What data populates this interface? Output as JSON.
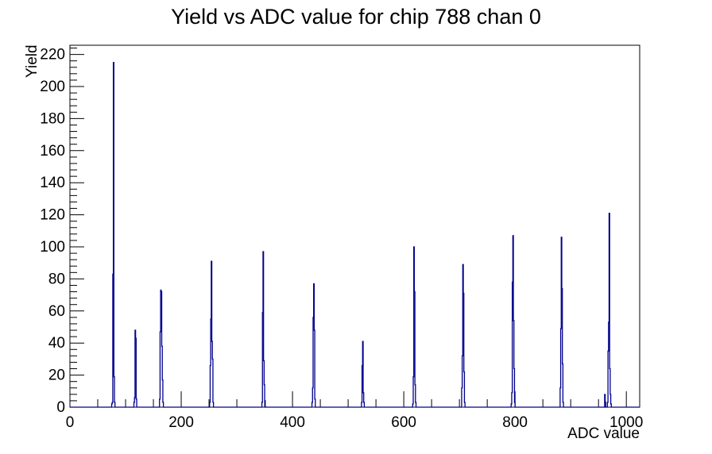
{
  "chart_data": {
    "type": "bar",
    "title": "Yield vs ADC value for chip 788 chan 0",
    "xlabel": "ADC value",
    "ylabel": "Yield",
    "xlim": [
      0,
      1024
    ],
    "ylim": [
      0,
      225.75
    ],
    "x_major_ticks": [
      0,
      200,
      400,
      600,
      800,
      1000
    ],
    "x_tick_labels": [
      "0",
      "200",
      "400",
      "600",
      "800",
      "1000"
    ],
    "x_minor_tick_step": 50,
    "y_major_ticks": [
      0,
      20,
      40,
      60,
      80,
      100,
      120,
      140,
      160,
      180,
      200,
      220
    ],
    "y_tick_labels": [
      "0",
      "20",
      "40",
      "60",
      "80",
      "100",
      "120",
      "140",
      "160",
      "180",
      "200",
      "220"
    ],
    "y_minor_tick_step": 4,
    "grid": false,
    "legend": false,
    "line_color": "#00008b",
    "axis_color": "#000000",
    "background": "#ffffff",
    "bin_width": 1,
    "peaks": [
      {
        "adc": 78,
        "yield": 215
      },
      {
        "adc": 117,
        "yield": 48
      },
      {
        "adc": 163,
        "yield": 73
      },
      {
        "adc": 254,
        "yield": 91
      },
      {
        "adc": 347,
        "yield": 97
      },
      {
        "adc": 438,
        "yield": 77
      },
      {
        "adc": 526,
        "yield": 41
      },
      {
        "adc": 618,
        "yield": 100
      },
      {
        "adc": 706,
        "yield": 89
      },
      {
        "adc": 796,
        "yield": 107
      },
      {
        "adc": 883,
        "yield": 106
      },
      {
        "adc": 969,
        "yield": 121
      }
    ],
    "bins": [
      [
        75,
        2
      ],
      [
        76,
        3
      ],
      [
        77,
        83
      ],
      [
        78,
        215
      ],
      [
        79,
        19
      ],
      [
        80,
        3
      ],
      [
        115,
        3
      ],
      [
        116,
        6
      ],
      [
        117,
        48
      ],
      [
        118,
        43
      ],
      [
        119,
        5
      ],
      [
        161,
        5
      ],
      [
        162,
        47
      ],
      [
        163,
        73
      ],
      [
        164,
        72
      ],
      [
        165,
        38
      ],
      [
        166,
        17
      ],
      [
        167,
        3
      ],
      [
        251,
        3
      ],
      [
        252,
        26
      ],
      [
        253,
        55
      ],
      [
        254,
        91
      ],
      [
        255,
        41
      ],
      [
        256,
        30
      ],
      [
        257,
        3
      ],
      [
        345,
        3
      ],
      [
        346,
        59
      ],
      [
        347,
        97
      ],
      [
        348,
        29
      ],
      [
        349,
        14
      ],
      [
        350,
        4
      ],
      [
        435,
        3
      ],
      [
        436,
        12
      ],
      [
        437,
        56
      ],
      [
        438,
        77
      ],
      [
        439,
        48
      ],
      [
        440,
        5
      ],
      [
        524,
        3
      ],
      [
        525,
        26
      ],
      [
        526,
        41
      ],
      [
        527,
        9
      ],
      [
        528,
        3
      ],
      [
        616,
        2
      ],
      [
        617,
        19
      ],
      [
        618,
        100
      ],
      [
        619,
        72
      ],
      [
        620,
        14
      ],
      [
        621,
        3
      ],
      [
        704,
        12
      ],
      [
        705,
        32
      ],
      [
        706,
        89
      ],
      [
        707,
        71
      ],
      [
        708,
        22
      ],
      [
        709,
        3
      ],
      [
        793,
        2
      ],
      [
        794,
        9
      ],
      [
        795,
        78
      ],
      [
        796,
        107
      ],
      [
        797,
        54
      ],
      [
        798,
        24
      ],
      [
        799,
        3
      ],
      [
        881,
        12
      ],
      [
        882,
        49
      ],
      [
        883,
        106
      ],
      [
        884,
        74
      ],
      [
        885,
        27
      ],
      [
        886,
        3
      ],
      [
        961,
        8
      ],
      [
        962,
        3
      ],
      [
        966,
        3
      ],
      [
        967,
        35
      ],
      [
        968,
        53
      ],
      [
        969,
        121
      ],
      [
        970,
        24
      ],
      [
        971,
        8
      ],
      [
        972,
        2
      ]
    ]
  }
}
